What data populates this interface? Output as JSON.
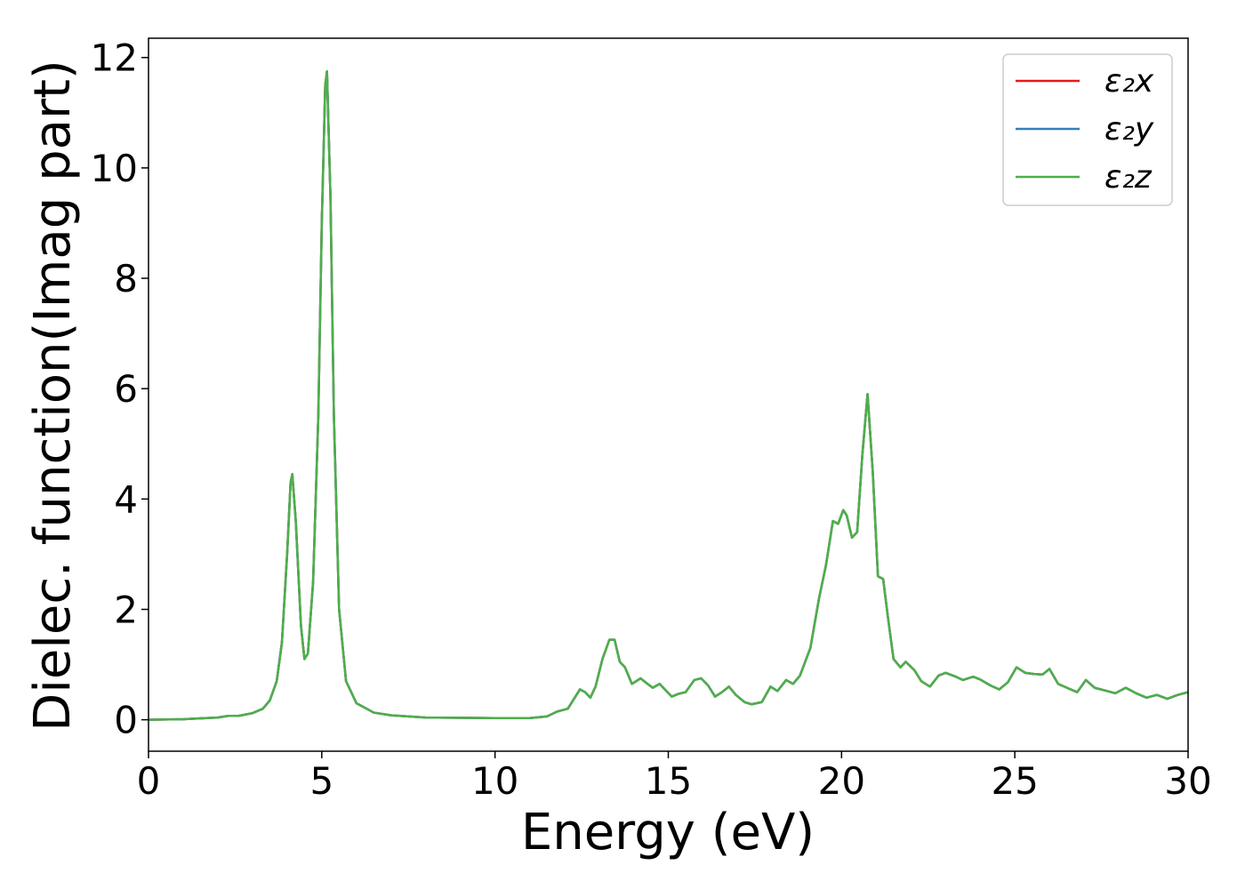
{
  "chart_data": {
    "type": "line",
    "xlabel": "Energy (eV)",
    "ylabel": "Dielec. function(Imag part)",
    "x": [
      0,
      1,
      2,
      2.3,
      2.6,
      3,
      3.3,
      3.5,
      3.7,
      3.85,
      4.0,
      4.1,
      4.15,
      4.25,
      4.4,
      4.5,
      4.6,
      4.75,
      4.9,
      5.0,
      5.1,
      5.15,
      5.25,
      5.35,
      5.5,
      5.7,
      6.0,
      6.5,
      7,
      8,
      10,
      11,
      11.5,
      11.8,
      12.1,
      12.3,
      12.45,
      12.6,
      12.75,
      12.9,
      13.1,
      13.3,
      13.45,
      13.6,
      13.75,
      13.95,
      14.2,
      14.4,
      14.55,
      14.75,
      14.9,
      15.1,
      15.3,
      15.5,
      15.75,
      15.95,
      16.15,
      16.35,
      16.55,
      16.75,
      16.95,
      17.2,
      17.4,
      17.7,
      17.95,
      18.15,
      18.4,
      18.6,
      18.8,
      19.1,
      19.35,
      19.55,
      19.75,
      19.9,
      20.05,
      20.15,
      20.3,
      20.45,
      20.6,
      20.75,
      20.9,
      21.05,
      21.2,
      21.35,
      21.5,
      21.7,
      21.85,
      22.1,
      22.3,
      22.55,
      22.8,
      23.0,
      23.3,
      23.5,
      23.8,
      24.0,
      24.3,
      24.55,
      24.8,
      25.05,
      25.3,
      25.55,
      25.8,
      26.0,
      26.25,
      26.5,
      26.8,
      27.05,
      27.3,
      27.6,
      27.9,
      28.2,
      28.5,
      28.8,
      29.1,
      29.4,
      29.7,
      30
    ],
    "series": [
      {
        "name": "ε₂x",
        "color": "#e41a1c",
        "values": [
          0,
          0.01,
          0.04,
          0.07,
          0.07,
          0.12,
          0.2,
          0.35,
          0.7,
          1.4,
          3.0,
          4.3,
          4.45,
          3.6,
          1.7,
          1.1,
          1.2,
          2.5,
          5.5,
          9.0,
          11.5,
          11.75,
          9.5,
          5.5,
          2.0,
          0.7,
          0.3,
          0.13,
          0.08,
          0.04,
          0.03,
          0.03,
          0.06,
          0.15,
          0.2,
          0.4,
          0.55,
          0.5,
          0.4,
          0.6,
          1.1,
          1.45,
          1.45,
          1.05,
          0.95,
          0.65,
          0.75,
          0.65,
          0.58,
          0.65,
          0.55,
          0.42,
          0.47,
          0.5,
          0.72,
          0.75,
          0.62,
          0.42,
          0.5,
          0.6,
          0.45,
          0.32,
          0.28,
          0.32,
          0.6,
          0.52,
          0.72,
          0.65,
          0.8,
          1.3,
          2.2,
          2.8,
          3.6,
          3.55,
          3.8,
          3.7,
          3.3,
          3.4,
          4.8,
          5.9,
          4.5,
          2.6,
          2.55,
          1.8,
          1.1,
          0.95,
          1.05,
          0.9,
          0.7,
          0.6,
          0.8,
          0.85,
          0.78,
          0.72,
          0.78,
          0.73,
          0.62,
          0.55,
          0.68,
          0.95,
          0.85,
          0.83,
          0.82,
          0.92,
          0.65,
          0.58,
          0.5,
          0.72,
          0.58,
          0.53,
          0.48,
          0.58,
          0.48,
          0.4,
          0.45,
          0.38,
          0.45,
          0.5
        ]
      },
      {
        "name": "ε₂y",
        "color": "#377eb8",
        "values": [
          0,
          0.01,
          0.04,
          0.07,
          0.07,
          0.12,
          0.2,
          0.35,
          0.7,
          1.4,
          3.0,
          4.3,
          4.45,
          3.6,
          1.7,
          1.1,
          1.2,
          2.5,
          5.5,
          9.0,
          11.5,
          11.75,
          9.5,
          5.5,
          2.0,
          0.7,
          0.3,
          0.13,
          0.08,
          0.04,
          0.03,
          0.03,
          0.06,
          0.15,
          0.2,
          0.4,
          0.55,
          0.5,
          0.4,
          0.6,
          1.1,
          1.45,
          1.45,
          1.05,
          0.95,
          0.65,
          0.75,
          0.65,
          0.58,
          0.65,
          0.55,
          0.42,
          0.47,
          0.5,
          0.72,
          0.75,
          0.62,
          0.42,
          0.5,
          0.6,
          0.45,
          0.32,
          0.28,
          0.32,
          0.6,
          0.52,
          0.72,
          0.65,
          0.8,
          1.3,
          2.2,
          2.8,
          3.6,
          3.55,
          3.8,
          3.7,
          3.3,
          3.4,
          4.8,
          5.9,
          4.5,
          2.6,
          2.55,
          1.8,
          1.1,
          0.95,
          1.05,
          0.9,
          0.7,
          0.6,
          0.8,
          0.85,
          0.78,
          0.72,
          0.78,
          0.73,
          0.62,
          0.55,
          0.68,
          0.95,
          0.85,
          0.83,
          0.82,
          0.92,
          0.65,
          0.58,
          0.5,
          0.72,
          0.58,
          0.53,
          0.48,
          0.58,
          0.48,
          0.4,
          0.45,
          0.38,
          0.45,
          0.5
        ]
      },
      {
        "name": "ε₂z",
        "color": "#4daf4a",
        "values": [
          0,
          0.01,
          0.04,
          0.07,
          0.07,
          0.12,
          0.2,
          0.35,
          0.7,
          1.4,
          3.0,
          4.3,
          4.45,
          3.6,
          1.7,
          1.1,
          1.2,
          2.5,
          5.5,
          9.0,
          11.5,
          11.75,
          9.5,
          5.5,
          2.0,
          0.7,
          0.3,
          0.13,
          0.08,
          0.04,
          0.03,
          0.03,
          0.06,
          0.15,
          0.2,
          0.4,
          0.55,
          0.5,
          0.4,
          0.6,
          1.1,
          1.45,
          1.45,
          1.05,
          0.95,
          0.65,
          0.75,
          0.65,
          0.58,
          0.65,
          0.55,
          0.42,
          0.47,
          0.5,
          0.72,
          0.75,
          0.62,
          0.42,
          0.5,
          0.6,
          0.45,
          0.32,
          0.28,
          0.32,
          0.6,
          0.52,
          0.72,
          0.65,
          0.8,
          1.3,
          2.2,
          2.8,
          3.6,
          3.55,
          3.8,
          3.7,
          3.3,
          3.4,
          4.8,
          5.9,
          4.5,
          2.6,
          2.55,
          1.8,
          1.1,
          0.95,
          1.05,
          0.9,
          0.7,
          0.6,
          0.8,
          0.85,
          0.78,
          0.72,
          0.78,
          0.73,
          0.62,
          0.55,
          0.68,
          0.95,
          0.85,
          0.83,
          0.82,
          0.92,
          0.65,
          0.58,
          0.5,
          0.72,
          0.58,
          0.53,
          0.48,
          0.58,
          0.48,
          0.4,
          0.45,
          0.38,
          0.45,
          0.5
        ]
      }
    ],
    "xlim": [
      0,
      30
    ],
    "xticks": [
      0,
      5,
      10,
      15,
      20,
      25,
      30
    ],
    "ylim": [
      -0.57,
      12.35
    ],
    "yticks": [
      0,
      2,
      4,
      6,
      8,
      10,
      12
    ],
    "legend": "upper right"
  }
}
